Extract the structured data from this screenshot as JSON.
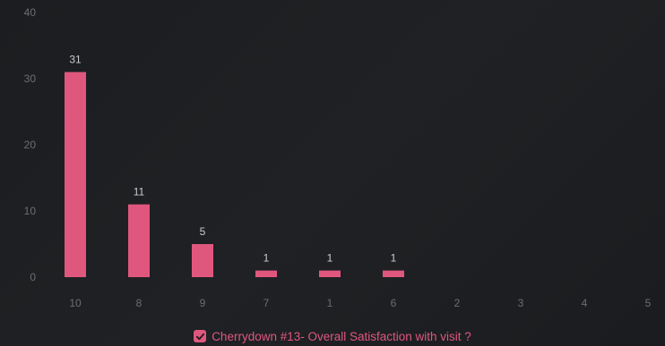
{
  "colors": {
    "bar": "#e0577e",
    "tick_text": "#6b6e73",
    "data_label": "#c9cbcf",
    "legend_text": "#e0577e",
    "check": "#1c1e21"
  },
  "legend": {
    "label": "Cherrydown #13- Overall Satisfaction with visit ?",
    "checked": true,
    "icon": "checkbox-checked-icon"
  },
  "chart_data": {
    "type": "bar",
    "categories": [
      "10",
      "8",
      "9",
      "7",
      "1",
      "6",
      "2",
      "3",
      "4",
      "5"
    ],
    "series": [
      {
        "name": "Cherrydown #13- Overall Satisfaction with visit ?",
        "values": [
          31,
          11,
          5,
          1,
          1,
          1,
          0,
          0,
          0,
          0
        ]
      }
    ],
    "data_labels": [
      "31",
      "11",
      "5",
      "1",
      "1",
      "1",
      "",
      "",
      "",
      ""
    ],
    "y_ticks": [
      "0",
      "10",
      "20",
      "30",
      "40"
    ],
    "ylim": [
      0,
      40
    ],
    "grid": false,
    "legend_position": "bottom-center"
  }
}
